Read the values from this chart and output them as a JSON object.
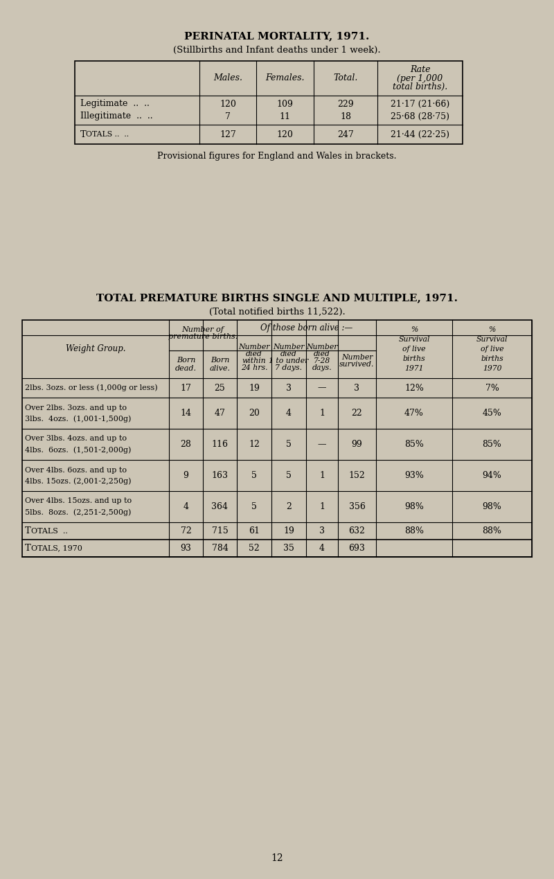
{
  "bg_color": "#ccc5b5",
  "title1": "PERINATAL MORTALITY, 1971.",
  "subtitle1": "(Stillbirths and Infant deaths under 1 week).",
  "title2": "TOTAL PREMATURE BIRTHS SINGLE AND MULTIPLE, 1971.",
  "subtitle2": "(Total notified births 11,522).",
  "table1_note": "Provisional figures for England and Wales in brackets.",
  "page_number": "12",
  "t1_col_headers": [
    "Males.",
    "Females.",
    "Total.",
    "Rate\n(per 1,000\ntotal births)."
  ],
  "t1_row1": [
    "Legitimate  ..  ..",
    "120",
    "109",
    "229",
    "21·17 (21·66)"
  ],
  "t1_row2": [
    "Illegitimate  ..  ..",
    "7",
    "11",
    "18",
    "25·68 (28·75)"
  ],
  "t1_totals": [
    "Totals ..  ..",
    "127",
    "120",
    "247",
    "21·44 (22·25)"
  ],
  "t2_rows": [
    [
      "2lbs. 3ozs. or less (1,000g or less)",
      "17",
      "25",
      "19",
      "3",
      "—",
      "3",
      "12%",
      "7%"
    ],
    [
      "Over 2lbs. 3ozs. and up to\n3lbs.  4ozs.  (1,001-1,500g)",
      "14",
      "47",
      "20",
      "4",
      "1",
      "22",
      "47%",
      "45%"
    ],
    [
      "Over 3lbs. 4ozs. and up to\n4lbs.  6ozs.  (1,501-2,000g)",
      "28",
      "116",
      "12",
      "5",
      "—",
      "99",
      "85%",
      "85%"
    ],
    [
      "Over 4lbs. 6ozs. and up to\n4lbs. 15ozs. (2,001-2,250g)",
      "9",
      "163",
      "5",
      "5",
      "1",
      "152",
      "93%",
      "94%"
    ],
    [
      "Over 4lbs. 15ozs. and up to\n5lbs.  8ozs.  (2,251-2,500g)",
      "4",
      "364",
      "5",
      "2",
      "1",
      "356",
      "98%",
      "98%"
    ]
  ],
  "t2_totals": [
    "Totals  ..",
    "72",
    "715",
    "61",
    "19",
    "3",
    "632",
    "88%",
    "88%"
  ],
  "t2_totals70": [
    "Totals, 1970",
    "93",
    "784",
    "52",
    "35",
    "4",
    "693",
    "",
    ""
  ]
}
